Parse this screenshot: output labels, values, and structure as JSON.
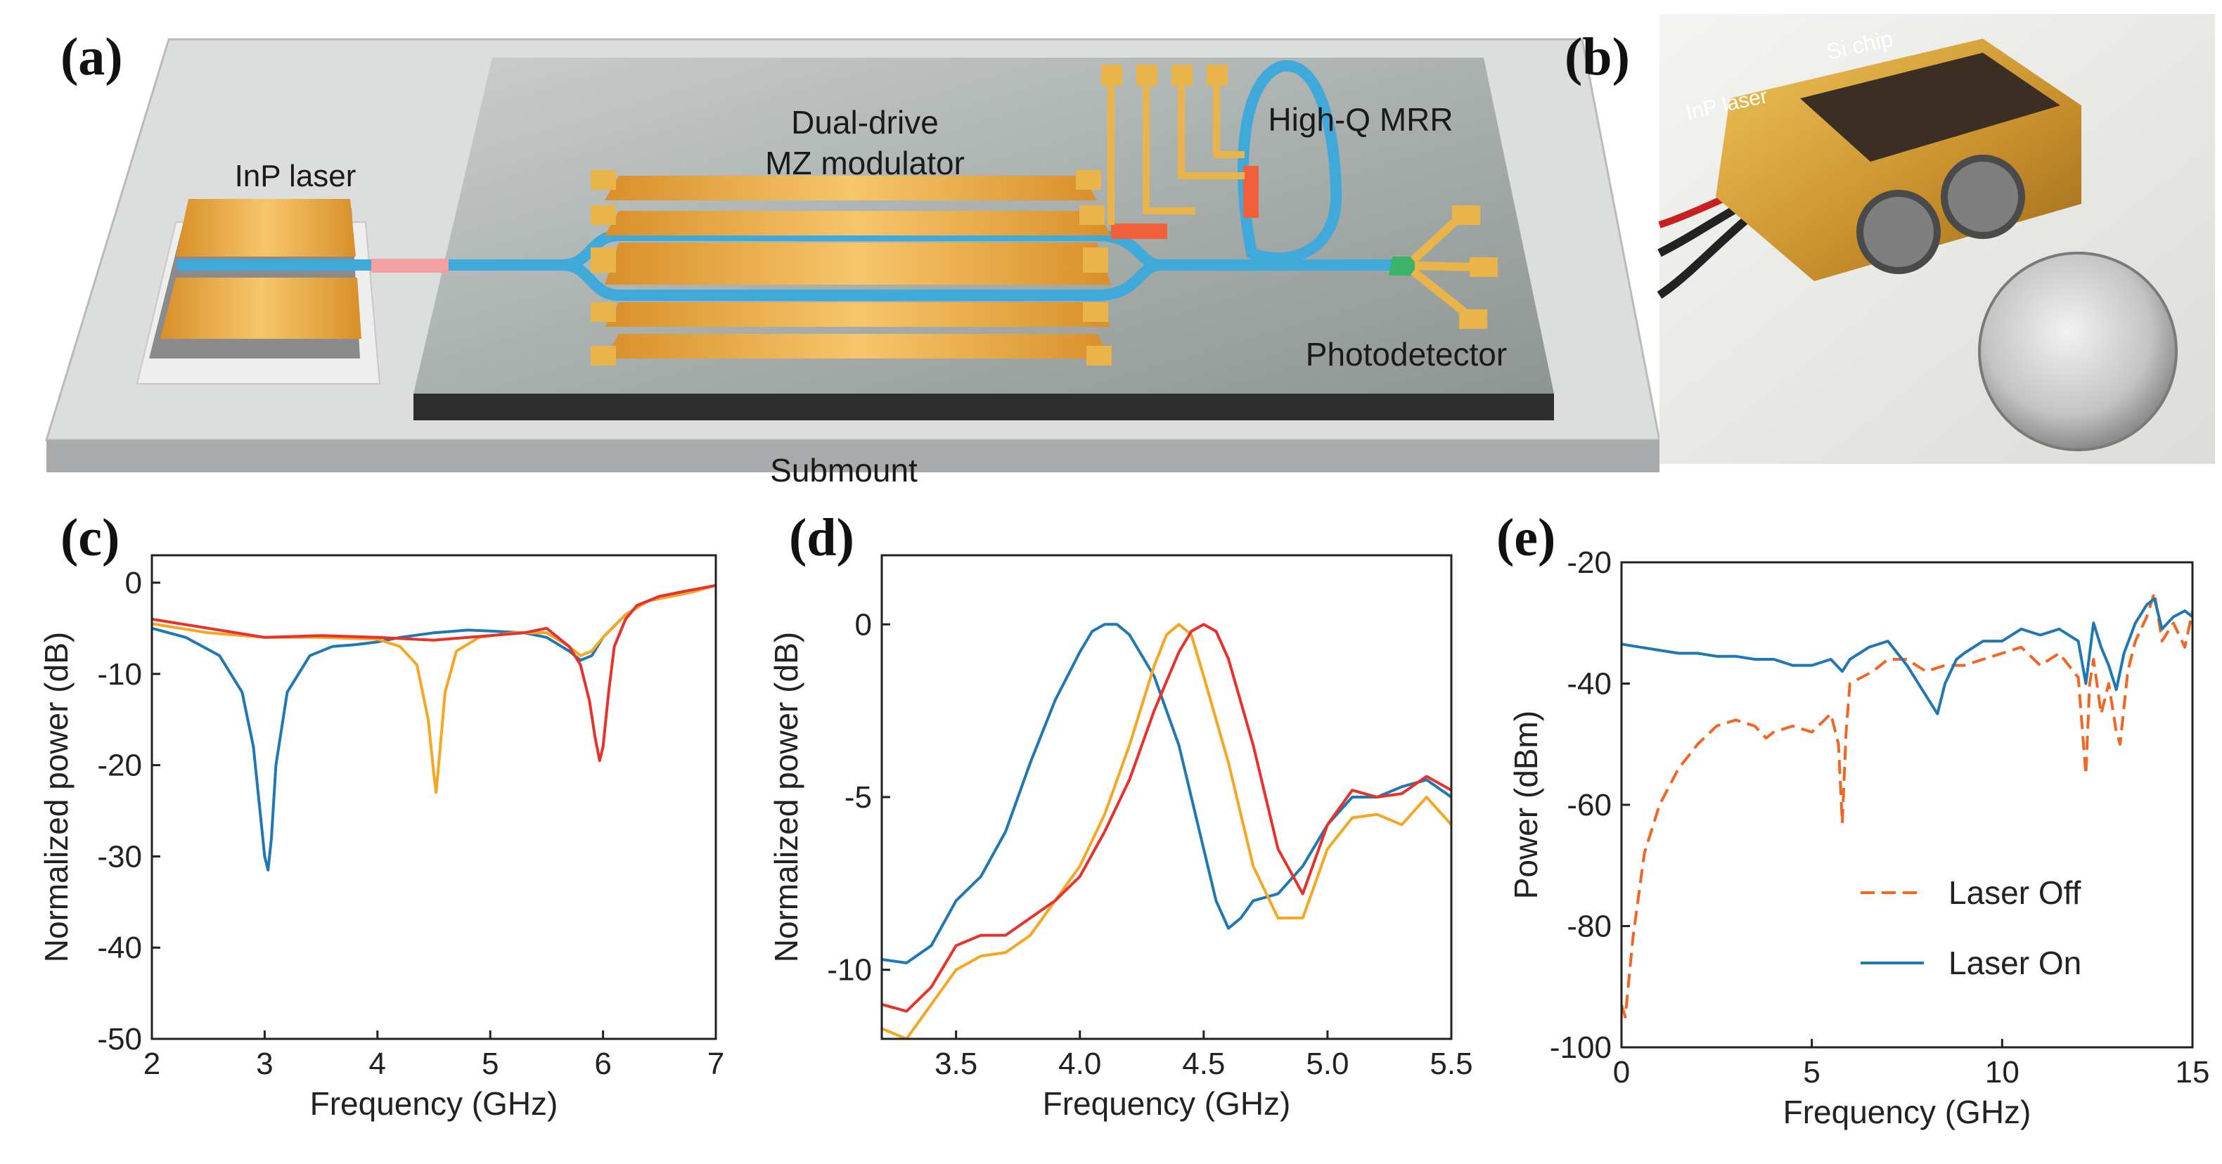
{
  "panel_labels": {
    "a": "(a)",
    "b": "(b)",
    "c": "(c)",
    "d": "(d)",
    "e": "(e)"
  },
  "schematic": {
    "laser": "InP laser",
    "modulator_line1": "Dual-drive",
    "modulator_line2": "MZ modulator",
    "mrr": "High-Q MRR",
    "photodetector": "Photodetector",
    "submount": "Submount"
  },
  "photo": {
    "label_laser": "InP laser",
    "label_chip": "Si chip"
  },
  "colors": {
    "blue": "#1f77b4",
    "orange": "#f5a623",
    "red": "#e8312a",
    "dashed": "#f26522",
    "waveguide": "#3fa9d9",
    "gold": "#e0a23a"
  },
  "chart_data": [
    {
      "id": "c",
      "type": "line",
      "xlabel": "Frequency (GHz)",
      "ylabel": "Normalized power (dB)",
      "xlim": [
        2,
        7
      ],
      "ylim": [
        -50,
        3
      ],
      "xticks": [
        2,
        3,
        4,
        5,
        6,
        7
      ],
      "yticks": [
        0,
        -10,
        -20,
        -30,
        -40,
        -50
      ],
      "series": [
        {
          "name": "blue",
          "color": "#1f77b4",
          "dashed": false,
          "x": [
            2.0,
            2.3,
            2.6,
            2.8,
            2.9,
            2.95,
            3.0,
            3.03,
            3.06,
            3.1,
            3.2,
            3.4,
            3.6,
            3.8,
            4.0,
            4.2,
            4.5,
            4.8,
            5.0,
            5.3,
            5.5,
            5.7,
            5.8,
            5.9,
            6.0,
            6.2,
            6.4,
            6.6,
            6.8,
            7.0
          ],
          "y": [
            -5,
            -6,
            -8,
            -12,
            -18,
            -24,
            -30,
            -31.5,
            -28,
            -20,
            -12,
            -8,
            -7,
            -6.8,
            -6.5,
            -6,
            -5.5,
            -5.2,
            -5.3,
            -5.5,
            -6,
            -7.5,
            -8.5,
            -8,
            -6,
            -3.5,
            -2,
            -1.5,
            -1,
            -0.3
          ]
        },
        {
          "name": "orange",
          "color": "#f5a623",
          "dashed": false,
          "x": [
            2.0,
            2.5,
            3.0,
            3.5,
            4.0,
            4.2,
            4.35,
            4.45,
            4.5,
            4.52,
            4.55,
            4.6,
            4.7,
            4.9,
            5.2,
            5.5,
            5.7,
            5.8,
            5.9,
            6.0,
            6.2,
            6.4,
            6.6,
            6.8,
            7.0
          ],
          "y": [
            -4.5,
            -5.5,
            -6,
            -6,
            -6.2,
            -7,
            -9,
            -15,
            -21,
            -23,
            -19,
            -12,
            -7.5,
            -6,
            -5.5,
            -5.5,
            -7,
            -8,
            -7.5,
            -6,
            -3.5,
            -2,
            -1.5,
            -1,
            -0.3
          ]
        },
        {
          "name": "red",
          "color": "#e8312a",
          "dashed": false,
          "x": [
            2.0,
            2.5,
            3.0,
            3.5,
            4.0,
            4.5,
            5.0,
            5.3,
            5.5,
            5.7,
            5.8,
            5.88,
            5.93,
            5.97,
            6.0,
            6.05,
            6.1,
            6.2,
            6.3,
            6.5,
            6.7,
            7.0
          ],
          "y": [
            -4,
            -5,
            -6,
            -5.8,
            -6,
            -6.3,
            -5.8,
            -5.5,
            -5,
            -7,
            -9,
            -13,
            -17,
            -19.5,
            -18,
            -12,
            -7,
            -4,
            -2.5,
            -1.5,
            -1,
            -0.3
          ]
        }
      ]
    },
    {
      "id": "d",
      "type": "line",
      "xlabel": "Frequency (GHz)",
      "ylabel": "Normalized power (dB)",
      "xlim": [
        3.2,
        5.5
      ],
      "ylim": [
        -12,
        2
      ],
      "xticks": [
        3.5,
        4.0,
        4.5,
        5.0,
        5.5
      ],
      "yticks": [
        0,
        -5,
        -10
      ],
      "series": [
        {
          "name": "blue",
          "color": "#1f77b4",
          "dashed": false,
          "x": [
            3.2,
            3.3,
            3.4,
            3.5,
            3.6,
            3.7,
            3.8,
            3.9,
            4.0,
            4.05,
            4.1,
            4.15,
            4.2,
            4.3,
            4.4,
            4.5,
            4.55,
            4.6,
            4.65,
            4.7,
            4.8,
            4.9,
            5.0,
            5.1,
            5.2,
            5.3,
            5.4,
            5.5
          ],
          "y": [
            -9.7,
            -9.8,
            -9.3,
            -8,
            -7.3,
            -6,
            -4,
            -2.2,
            -0.8,
            -0.2,
            0,
            0,
            -0.3,
            -1.5,
            -3.5,
            -6.5,
            -8,
            -8.8,
            -8.5,
            -8,
            -7.8,
            -7,
            -5.8,
            -5,
            -5,
            -4.7,
            -4.5,
            -5
          ]
        },
        {
          "name": "orange",
          "color": "#f5a623",
          "dashed": false,
          "x": [
            3.2,
            3.3,
            3.4,
            3.5,
            3.6,
            3.7,
            3.8,
            3.9,
            4.0,
            4.1,
            4.2,
            4.3,
            4.35,
            4.4,
            4.45,
            4.5,
            4.6,
            4.7,
            4.8,
            4.9,
            5.0,
            5.1,
            5.2,
            5.3,
            5.4,
            5.5
          ],
          "y": [
            -11.7,
            -12,
            -11,
            -10,
            -9.6,
            -9.5,
            -9,
            -8,
            -7,
            -5.5,
            -3.5,
            -1.2,
            -0.3,
            0,
            -0.3,
            -1.5,
            -4,
            -7,
            -8.5,
            -8.5,
            -6.5,
            -5.6,
            -5.5,
            -5.8,
            -5,
            -5.8
          ]
        },
        {
          "name": "red",
          "color": "#e8312a",
          "dashed": false,
          "x": [
            3.2,
            3.3,
            3.4,
            3.5,
            3.6,
            3.7,
            3.8,
            3.9,
            4.0,
            4.1,
            4.2,
            4.3,
            4.4,
            4.45,
            4.5,
            4.55,
            4.6,
            4.7,
            4.8,
            4.9,
            5.0,
            5.1,
            5.2,
            5.3,
            5.4,
            5.5
          ],
          "y": [
            -11,
            -11.2,
            -10.5,
            -9.3,
            -9,
            -9,
            -8.5,
            -8,
            -7.3,
            -6,
            -4.5,
            -2.5,
            -0.8,
            -0.2,
            0,
            -0.2,
            -1,
            -3.5,
            -6.5,
            -7.8,
            -5.8,
            -4.8,
            -5,
            -4.9,
            -4.4,
            -4.8
          ]
        }
      ]
    },
    {
      "id": "e",
      "type": "line",
      "xlabel": "Frequency (GHz)",
      "ylabel": "Power (dBm)",
      "xlim": [
        0,
        15
      ],
      "ylim": [
        -100,
        -20
      ],
      "xticks": [
        0,
        5,
        10,
        15
      ],
      "yticks": [
        -20,
        -40,
        -60,
        -80,
        -100
      ],
      "legend": {
        "position": "center-right",
        "entries": [
          "Laser Off",
          "Laser On"
        ]
      },
      "series": [
        {
          "name": "Laser Off",
          "color": "#f26522",
          "dashed": true,
          "x": [
            0,
            0.1,
            0.3,
            0.6,
            1.0,
            1.5,
            2.0,
            2.5,
            3.0,
            3.5,
            3.8,
            4.0,
            4.5,
            5.0,
            5.5,
            5.7,
            5.8,
            5.9,
            6.0,
            6.3,
            6.6,
            7.0,
            7.5,
            8.0,
            8.5,
            9.0,
            9.5,
            10.0,
            10.5,
            11.0,
            11.5,
            12.0,
            12.2,
            12.3,
            12.4,
            12.6,
            12.8,
            13.0,
            13.1,
            13.3,
            13.5,
            13.8,
            14.0,
            14.2,
            14.5,
            14.8,
            15.0
          ],
          "y": [
            -93,
            -95,
            -82,
            -68,
            -60,
            -54,
            -50,
            -47,
            -46,
            -47,
            -49,
            -48,
            -47,
            -48,
            -45,
            -50,
            -63,
            -48,
            -40,
            -39,
            -38,
            -36,
            -36,
            -38,
            -37,
            -37,
            -36,
            -35,
            -34,
            -37,
            -35,
            -39,
            -55,
            -40,
            -36,
            -45,
            -40,
            -48,
            -50,
            -38,
            -33,
            -29,
            -25,
            -33,
            -30,
            -34,
            -28
          ]
        },
        {
          "name": "Laser On",
          "color": "#1f77b4",
          "dashed": false,
          "x": [
            0,
            0.5,
            1.0,
            1.5,
            2.0,
            2.5,
            3.0,
            3.5,
            4.0,
            4.5,
            5.0,
            5.5,
            5.8,
            6.0,
            6.5,
            7.0,
            7.5,
            8.0,
            8.3,
            8.5,
            8.8,
            9.0,
            9.5,
            10.0,
            10.5,
            11.0,
            11.5,
            12.0,
            12.2,
            12.4,
            12.6,
            12.8,
            13.0,
            13.2,
            13.5,
            13.8,
            14.0,
            14.2,
            14.5,
            14.8,
            15.0
          ],
          "y": [
            -33.5,
            -34,
            -34.5,
            -35,
            -35,
            -35.5,
            -35.5,
            -36,
            -36,
            -37,
            -37,
            -36,
            -38,
            -36,
            -34,
            -33,
            -37,
            -42,
            -45,
            -40,
            -36,
            -35,
            -33,
            -33,
            -31,
            -32,
            -31,
            -33,
            -40,
            -30,
            -34,
            -37,
            -41,
            -35,
            -30,
            -27,
            -26,
            -31,
            -29,
            -28,
            -29
          ]
        }
      ]
    }
  ]
}
